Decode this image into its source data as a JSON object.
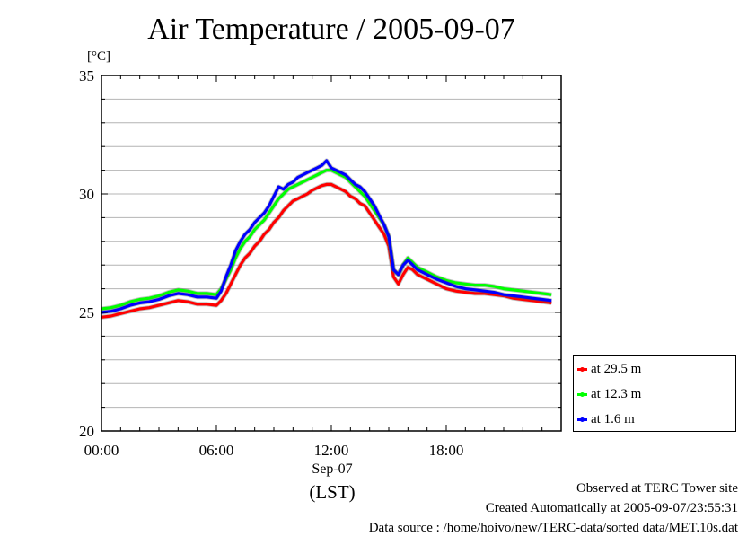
{
  "chart_data": {
    "type": "line",
    "title": "Air Temperature / 2005-09-07",
    "ylabel": "[°C]",
    "xlabel": "(LST)",
    "x_date_label": "Sep-07",
    "xlim_hours": [
      0,
      24
    ],
    "ylim": [
      20,
      35
    ],
    "yticks": [
      "20",
      "25",
      "30",
      "35"
    ],
    "xticks": [
      {
        "hour": 0,
        "label": "00:00"
      },
      {
        "hour": 6,
        "label": "06:00"
      },
      {
        "hour": 12,
        "label": "12:00"
      },
      {
        "hour": 18,
        "label": "18:00"
      }
    ],
    "grid": true,
    "legend_position": "lower-right outside",
    "x": [
      0,
      0.5,
      1,
      1.5,
      2,
      2.5,
      3,
      3.5,
      4,
      4.5,
      5,
      5.5,
      6,
      6.25,
      6.5,
      6.75,
      7,
      7.25,
      7.5,
      7.75,
      8,
      8.25,
      8.5,
      8.75,
      9,
      9.25,
      9.5,
      9.75,
      10,
      10.25,
      10.5,
      10.75,
      11,
      11.25,
      11.5,
      11.75,
      12,
      12.25,
      12.5,
      12.75,
      13,
      13.25,
      13.5,
      13.75,
      14,
      14.25,
      14.5,
      14.75,
      15,
      15.25,
      15.5,
      15.75,
      16,
      16.25,
      16.5,
      16.75,
      17,
      17.5,
      18,
      18.5,
      19,
      19.5,
      20,
      20.5,
      21,
      21.5,
      22,
      22.5,
      23,
      23.5
    ],
    "series": [
      {
        "name": "at 29.5 m",
        "color": "#ff0000",
        "values": [
          24.8,
          24.85,
          24.95,
          25.05,
          25.15,
          25.2,
          25.3,
          25.4,
          25.5,
          25.45,
          25.35,
          25.35,
          25.3,
          25.5,
          25.8,
          26.2,
          26.6,
          27.0,
          27.3,
          27.5,
          27.8,
          28.0,
          28.3,
          28.5,
          28.8,
          29.0,
          29.3,
          29.5,
          29.7,
          29.8,
          29.9,
          30.0,
          30.15,
          30.25,
          30.35,
          30.4,
          30.4,
          30.3,
          30.2,
          30.1,
          29.9,
          29.8,
          29.6,
          29.5,
          29.2,
          28.9,
          28.6,
          28.3,
          27.8,
          26.5,
          26.2,
          26.6,
          26.9,
          26.8,
          26.6,
          26.5,
          26.4,
          26.2,
          26.0,
          25.9,
          25.85,
          25.8,
          25.8,
          25.75,
          25.7,
          25.6,
          25.55,
          25.5,
          25.45,
          25.4
        ]
      },
      {
        "name": "at 12.3 m",
        "color": "#00ff00",
        "values": [
          25.15,
          25.2,
          25.3,
          25.45,
          25.55,
          25.6,
          25.7,
          25.85,
          25.95,
          25.9,
          25.8,
          25.8,
          25.75,
          26.0,
          26.4,
          26.8,
          27.3,
          27.7,
          28.0,
          28.2,
          28.5,
          28.7,
          28.9,
          29.2,
          29.5,
          29.8,
          30.0,
          30.2,
          30.3,
          30.4,
          30.5,
          30.6,
          30.7,
          30.8,
          30.9,
          31.0,
          31.0,
          30.9,
          30.8,
          30.7,
          30.5,
          30.3,
          30.1,
          29.9,
          29.6,
          29.3,
          29.0,
          28.7,
          28.2,
          26.8,
          26.6,
          27.0,
          27.3,
          27.1,
          26.9,
          26.8,
          26.7,
          26.5,
          26.35,
          26.25,
          26.2,
          26.15,
          26.15,
          26.1,
          26.0,
          25.95,
          25.9,
          25.85,
          25.8,
          25.75
        ]
      },
      {
        "name": "at 1.6 m",
        "color": "#0000ff",
        "values": [
          25.0,
          25.05,
          25.15,
          25.3,
          25.4,
          25.45,
          25.55,
          25.7,
          25.8,
          25.75,
          25.65,
          25.65,
          25.6,
          25.9,
          26.5,
          27.0,
          27.6,
          28.0,
          28.3,
          28.5,
          28.8,
          29.0,
          29.2,
          29.5,
          29.9,
          30.3,
          30.2,
          30.4,
          30.5,
          30.7,
          30.8,
          30.9,
          31.0,
          31.1,
          31.2,
          31.4,
          31.1,
          31.0,
          30.9,
          30.8,
          30.6,
          30.4,
          30.3,
          30.1,
          29.8,
          29.5,
          29.1,
          28.7,
          28.2,
          26.8,
          26.6,
          27.0,
          27.2,
          27.0,
          26.8,
          26.7,
          26.6,
          26.4,
          26.25,
          26.1,
          26.0,
          25.95,
          25.9,
          25.85,
          25.75,
          25.7,
          25.65,
          25.6,
          25.55,
          25.5
        ]
      }
    ]
  },
  "footer": {
    "line1": "Observed at TERC Tower site",
    "line2": "Created Automatically at 2005-09-07/23:55:31",
    "line3": "Data source : /home/hoivo/new/TERC-data/sorted  data/MET.10s.dat"
  }
}
